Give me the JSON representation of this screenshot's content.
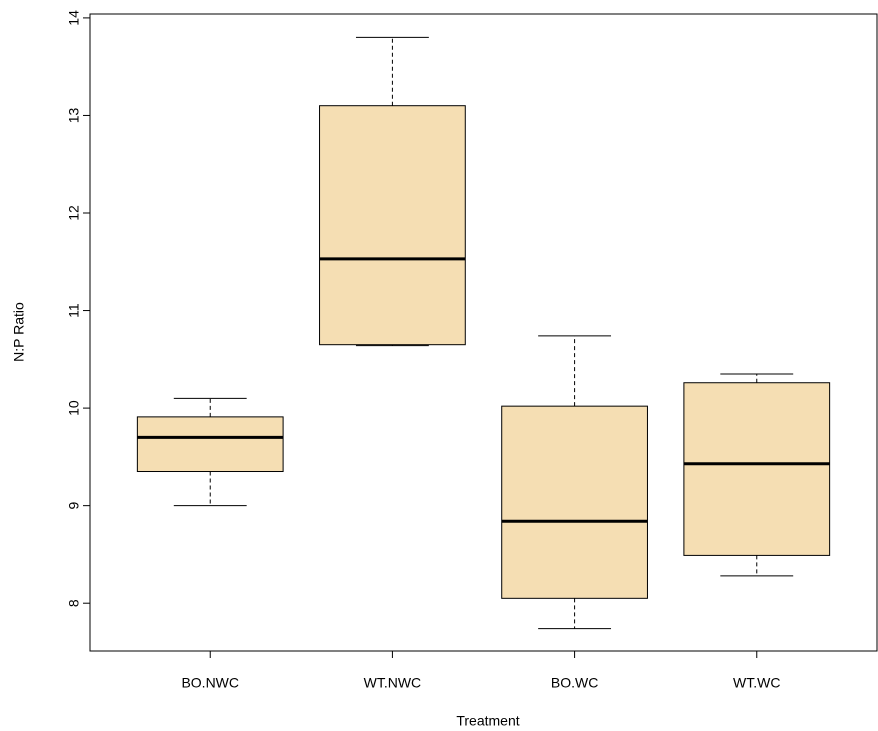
{
  "chart_data": {
    "type": "box",
    "x_label": "Treatment",
    "y_label": "N:P Ratio",
    "categories": [
      "BO.NWC",
      "WT.NWC",
      "BO.WC",
      "WT.WC"
    ],
    "boxes": [
      {
        "min": 9.0,
        "q1": 9.35,
        "median": 9.7,
        "q3": 9.91,
        "max": 10.1
      },
      {
        "min": 10.64,
        "q1": 10.65,
        "median": 11.53,
        "q3": 13.1,
        "max": 13.8
      },
      {
        "min": 7.74,
        "q1": 8.05,
        "median": 8.84,
        "q3": 10.02,
        "max": 10.74
      },
      {
        "min": 8.28,
        "q1": 8.49,
        "median": 9.43,
        "q3": 10.26,
        "max": 10.35
      }
    ],
    "color": "#f5deb3",
    "ylim": [
      7.51,
      14.04
    ],
    "yticks": [
      8,
      9,
      10,
      11,
      12,
      13,
      14
    ]
  }
}
